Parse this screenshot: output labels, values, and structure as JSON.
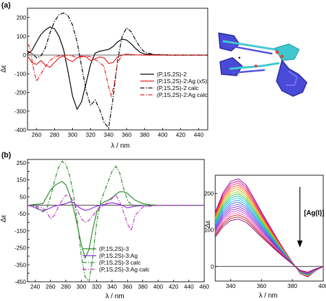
{
  "chart_data": [
    {
      "panel": "(a)",
      "type": "line",
      "xlabel": "λ / nm",
      "ylabel": "Δε",
      "xlim": [
        250,
        450
      ],
      "ylim": [
        -400,
        250
      ],
      "xticks": [
        260,
        280,
        300,
        320,
        340,
        360,
        380,
        400,
        420,
        440
      ],
      "yticks": [
        -400,
        -300,
        -200,
        -100,
        0,
        100,
        200
      ],
      "legend_position": "center-right",
      "series": [
        {
          "name": "(P,1S,2S)-2",
          "color": "#000000",
          "dash": "solid",
          "x": [
            250,
            255,
            260,
            265,
            270,
            275,
            280,
            285,
            290,
            295,
            300,
            305,
            310,
            315,
            320,
            325,
            330,
            335,
            340,
            345,
            350,
            355,
            360,
            365,
            370,
            375,
            380,
            390,
            400,
            410,
            420,
            430,
            440,
            450
          ],
          "y": [
            5,
            25,
            70,
            110,
            135,
            150,
            140,
            100,
            30,
            -90,
            -220,
            -290,
            -250,
            -150,
            -50,
            10,
            20,
            25,
            30,
            45,
            70,
            85,
            80,
            60,
            35,
            15,
            5,
            2,
            1,
            0,
            0,
            0,
            0,
            0
          ]
        },
        {
          "name": "(P,1S,2S)-2:Ag (x5)",
          "color": "#e02020",
          "dash": "solid",
          "x": [
            250,
            255,
            260,
            265,
            270,
            275,
            280,
            285,
            290,
            295,
            300,
            305,
            310,
            315,
            320,
            325,
            330,
            335,
            340,
            345,
            350,
            355,
            360,
            365,
            370,
            380,
            390,
            400,
            420,
            450
          ],
          "y": [
            -5,
            -40,
            -50,
            -30,
            -55,
            -65,
            -40,
            -15,
            -5,
            -25,
            -35,
            -15,
            -5,
            -10,
            -30,
            -20,
            -10,
            -15,
            -45,
            -40,
            -10,
            0,
            5,
            3,
            1,
            0,
            0,
            0,
            0,
            0
          ]
        },
        {
          "name": "(P,1S,2S)-2 calc",
          "color": "#000000",
          "dash": "dashdot",
          "x": [
            250,
            255,
            260,
            265,
            270,
            275,
            280,
            285,
            290,
            295,
            300,
            305,
            310,
            315,
            320,
            325,
            330,
            335,
            340,
            345,
            350,
            355,
            360,
            365,
            370,
            375,
            380,
            390,
            400,
            410,
            420,
            450
          ],
          "y": [
            20,
            10,
            -15,
            -5,
            40,
            120,
            180,
            215,
            225,
            210,
            160,
            70,
            -60,
            -190,
            -270,
            -240,
            -290,
            -360,
            -390,
            -230,
            -30,
            100,
            145,
            125,
            80,
            40,
            15,
            3,
            1,
            0,
            0,
            0
          ]
        },
        {
          "name": "(P,1S,2S)-2:Ag calc",
          "color": "#e02020",
          "dash": "dashdot",
          "x": [
            250,
            253,
            256,
            260,
            265,
            270,
            275,
            280,
            285,
            290,
            295,
            300,
            305,
            310,
            315,
            320,
            325,
            330,
            335,
            340,
            343,
            346,
            350,
            355,
            360,
            365,
            370,
            380,
            400,
            450
          ],
          "y": [
            60,
            40,
            -60,
            -140,
            -100,
            -60,
            -30,
            -10,
            -5,
            -2,
            0,
            -5,
            -15,
            -10,
            -5,
            -10,
            -25,
            -40,
            -60,
            -170,
            -220,
            -160,
            -40,
            0,
            5,
            3,
            1,
            0,
            0,
            0
          ]
        }
      ]
    },
    {
      "panel": "(b)",
      "type": "line",
      "xlabel": "λ / nm",
      "ylabel": "Δε",
      "xlim": [
        230,
        460
      ],
      "ylim": [
        -450,
        270
      ],
      "xticks": [
        240,
        260,
        280,
        300,
        320,
        340,
        360,
        380,
        400,
        420,
        440,
        460
      ],
      "yticks": [
        -450,
        -400,
        -350,
        -300,
        -250,
        -200,
        -150,
        -100,
        -50,
        0,
        50,
        100,
        150,
        200,
        250
      ],
      "legend_position": "bottom-right",
      "series": [
        {
          "name": "(P,1S,2S)-3",
          "color": "#2a8a2a",
          "dash": "solid",
          "x": [
            230,
            240,
            250,
            255,
            260,
            265,
            270,
            275,
            280,
            285,
            290,
            295,
            300,
            305,
            310,
            315,
            320,
            325,
            330,
            335,
            340,
            345,
            350,
            355,
            360,
            365,
            370,
            380,
            390,
            400,
            420,
            460
          ],
          "y": [
            0,
            5,
            10,
            50,
            90,
            115,
            130,
            140,
            120,
            60,
            -20,
            -120,
            -230,
            -310,
            -260,
            -140,
            -40,
            5,
            20,
            30,
            45,
            65,
            80,
            80,
            70,
            50,
            30,
            10,
            3,
            0,
            0,
            0
          ]
        },
        {
          "name": "(P,1S,2S)-3:Ag",
          "color": "#8a2be2",
          "dash": "solid",
          "x": [
            230,
            235,
            240,
            245,
            250,
            255,
            260,
            265,
            270,
            275,
            280,
            285,
            290,
            295,
            300,
            305,
            310,
            315,
            320,
            325,
            330,
            335,
            340,
            345,
            350,
            355,
            360,
            365,
            370,
            380,
            400,
            460
          ],
          "y": [
            0,
            -5,
            -15,
            -25,
            -30,
            -25,
            -15,
            -5,
            0,
            5,
            10,
            20,
            15,
            -5,
            -20,
            -30,
            -25,
            -15,
            -5,
            0,
            5,
            10,
            15,
            10,
            5,
            -5,
            -15,
            -10,
            -5,
            -2,
            0,
            0
          ]
        },
        {
          "name": "(P,1S,2S)-3 calc",
          "color": "#2a8a2a",
          "dash": "dashdot",
          "x": [
            230,
            240,
            250,
            255,
            260,
            265,
            270,
            275,
            280,
            285,
            290,
            295,
            300,
            305,
            310,
            315,
            320,
            325,
            330,
            335,
            340,
            345,
            350,
            355,
            360,
            365,
            370,
            380,
            390,
            400,
            420,
            460
          ],
          "y": [
            0,
            -5,
            -40,
            -20,
            50,
            140,
            220,
            260,
            240,
            170,
            60,
            -100,
            -300,
            -420,
            -450,
            -300,
            -100,
            20,
            80,
            140,
            200,
            230,
            190,
            100,
            30,
            5,
            0,
            0,
            0,
            0,
            0,
            0
          ]
        },
        {
          "name": "(P,1S,2S)-3:Ag calc",
          "color": "#cc33cc",
          "dash": "dashdot",
          "x": [
            230,
            240,
            250,
            255,
            260,
            265,
            270,
            275,
            280,
            285,
            290,
            295,
            300,
            305,
            310,
            315,
            320,
            325,
            330,
            335,
            340,
            345,
            350,
            355,
            360,
            365,
            370,
            380,
            400,
            460
          ],
          "y": [
            0,
            -5,
            -15,
            -40,
            -80,
            -60,
            -10,
            30,
            60,
            55,
            20,
            -30,
            -80,
            -100,
            -90,
            -60,
            -30,
            -10,
            0,
            20,
            40,
            60,
            20,
            -40,
            -110,
            -150,
            -60,
            -10,
            0,
            0
          ]
        }
      ]
    },
    {
      "panel": "inset",
      "type": "line",
      "xlabel": "λ / nm",
      "ylabel": "Δε",
      "xlim": [
        330,
        400
      ],
      "ylim": [
        -40,
        250
      ],
      "xticks": [
        340,
        360,
        380,
        400
      ],
      "yticks": [
        0,
        100,
        200
      ],
      "annotation": "[Ag(I)]",
      "series_count": 20,
      "curve_template": {
        "x": [
          330,
          335,
          340,
          345,
          350,
          355,
          360,
          365,
          370,
          375,
          380,
          385,
          390,
          395,
          400
        ],
        "shape": [
          0.62,
          0.84,
          0.97,
          1.0,
          0.93,
          0.78,
          0.62,
          0.47,
          0.32,
          0.18,
          0.05,
          -0.08,
          -0.12,
          -0.05,
          0.0
        ],
        "peak_values_start": 240,
        "peak_values_end": 130
      }
    }
  ]
}
